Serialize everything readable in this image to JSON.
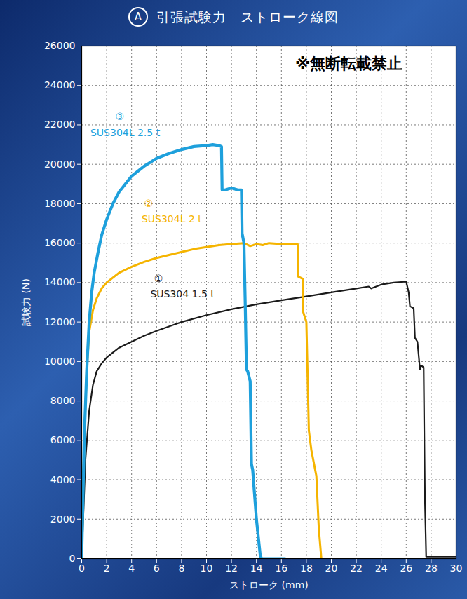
{
  "chart_data": {
    "type": "line",
    "panel_label": "A",
    "title": "引張試験力　ストローク線図",
    "xlabel": "ストローク (mm)",
    "ylabel": "試験力 (N)",
    "xlim": [
      0,
      30
    ],
    "xticks": [
      0,
      2,
      4,
      6,
      8,
      10,
      12,
      14,
      16,
      18,
      20,
      22,
      24,
      26,
      28,
      30
    ],
    "ylim": [
      0,
      26000
    ],
    "yticks": [
      0,
      2000,
      4000,
      6000,
      8000,
      10000,
      12000,
      14000,
      16000,
      18000,
      20000,
      22000,
      24000,
      26000
    ],
    "grid": true,
    "series": [
      {
        "name": "SUS304 1.5 t",
        "color": "#1a1a1a",
        "x": [
          0,
          0.3,
          0.6,
          0.9,
          1.2,
          1.6,
          2,
          3,
          4,
          5,
          6,
          8,
          10,
          12,
          14,
          16,
          18,
          20,
          22,
          23,
          23.2,
          24,
          25,
          26,
          26.2,
          26.3,
          26.6,
          26.7,
          26.9,
          27.1,
          27.2,
          27.4,
          27.5,
          27.6,
          30
        ],
        "values": [
          0,
          5000,
          7500,
          8800,
          9500,
          9900,
          10200,
          10700,
          11000,
          11300,
          11550,
          12000,
          12350,
          12650,
          12900,
          13100,
          13300,
          13500,
          13700,
          13800,
          13700,
          13900,
          14000,
          14050,
          13500,
          12800,
          12700,
          11200,
          11000,
          9600,
          9800,
          9700,
          3000,
          100,
          100
        ]
      },
      {
        "name": "SUS304L 2 t",
        "color": "#f5b400",
        "x": [
          0,
          0.2,
          0.4,
          0.6,
          0.9,
          1.2,
          1.6,
          2,
          3,
          4,
          5,
          6,
          7,
          8,
          9,
          10,
          11,
          12,
          13,
          13.5,
          14,
          14.5,
          15,
          16,
          17,
          17.3,
          17.35,
          17.7,
          17.75,
          18,
          18.2,
          18.4,
          18.8,
          19.0,
          19.2,
          19.8
        ],
        "values": [
          0,
          6000,
          9500,
          11500,
          12600,
          13200,
          13700,
          14000,
          14500,
          14800,
          15050,
          15250,
          15400,
          15550,
          15700,
          15800,
          15900,
          15950,
          16000,
          15850,
          15950,
          15900,
          16000,
          15950,
          15950,
          15950,
          14300,
          14200,
          12500,
          12000,
          6500,
          5500,
          4200,
          1500,
          0,
          0
        ]
      },
      {
        "name": "SUS304L 2.5 t",
        "color": "#1ea0dc",
        "x": [
          0,
          0.2,
          0.4,
          0.6,
          0.8,
          1.0,
          1.3,
          1.6,
          2.0,
          2.5,
          3,
          4,
          5,
          6,
          7,
          8,
          9,
          10,
          10.5,
          11,
          11.2,
          11.25,
          11.5,
          12,
          12.5,
          12.8,
          12.85,
          13.0,
          13.1,
          13.2,
          13.3,
          13.5,
          13.6,
          13.7,
          14.0,
          14.3,
          14.4,
          16.3
        ],
        "values": [
          0,
          6000,
          9500,
          12000,
          13500,
          14500,
          15500,
          16400,
          17200,
          18000,
          18600,
          19400,
          19900,
          20300,
          20550,
          20750,
          20900,
          20950,
          21000,
          20950,
          20900,
          18700,
          18700,
          18800,
          18700,
          18700,
          16500,
          16000,
          13000,
          9600,
          9500,
          9000,
          4800,
          4500,
          2000,
          200,
          0,
          0
        ]
      }
    ],
    "annotations": [
      {
        "text": "③",
        "x": 2.7,
        "y": 22400,
        "color": "#1ea0dc"
      },
      {
        "text": "SUS304L 2.5 t",
        "x": 0.7,
        "y": 21600,
        "color": "#1ea0dc"
      },
      {
        "text": "②",
        "x": 5.0,
        "y": 18000,
        "color": "#f5b400"
      },
      {
        "text": "SUS304L 2 t",
        "x": 4.8,
        "y": 17200,
        "color": "#f5b400"
      },
      {
        "text": "①",
        "x": 5.8,
        "y": 14200,
        "color": "#1a1a1a"
      },
      {
        "text": "SUS304 1.5 t",
        "x": 5.5,
        "y": 13400,
        "color": "#1a1a1a"
      }
    ],
    "watermark": {
      "text": "※無断転載禁止",
      "x": 17.1,
      "y": 25100
    }
  }
}
